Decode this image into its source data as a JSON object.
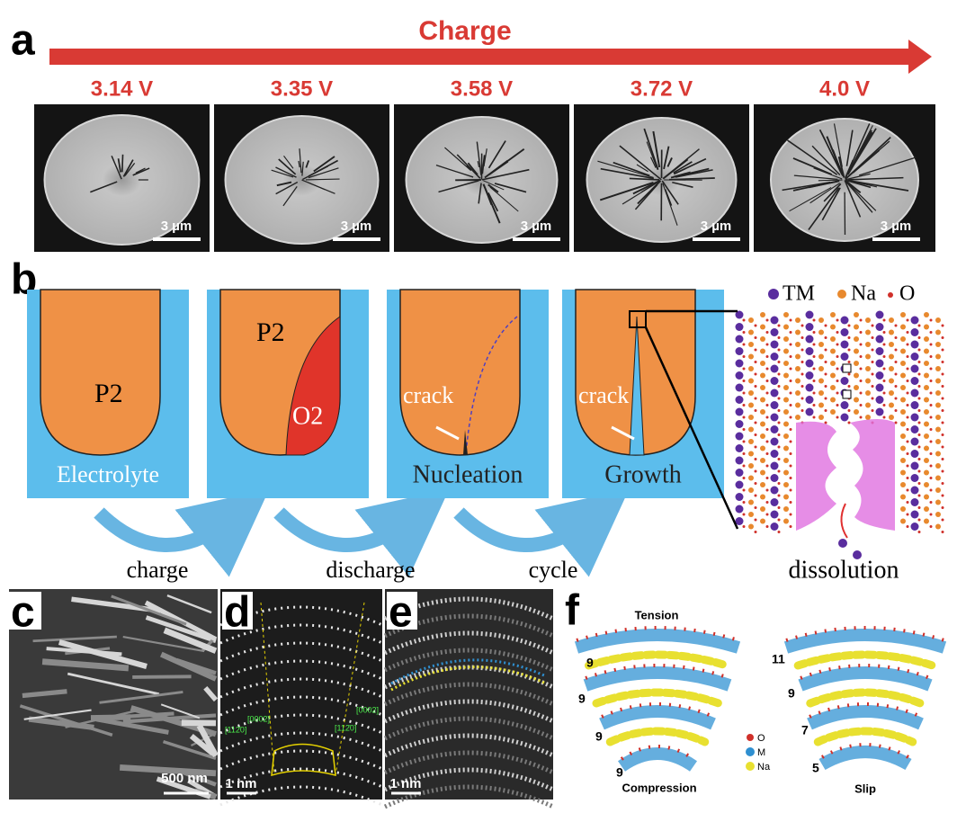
{
  "panel_a": {
    "label": "a",
    "arrow_label": "Charge",
    "images": [
      {
        "voltage": "3.14 V",
        "scale_bar": "3 µm"
      },
      {
        "voltage": "3.35 V",
        "scale_bar": "3 µm"
      },
      {
        "voltage": "3.58 V",
        "scale_bar": "3 µm"
      },
      {
        "voltage": "3.72 V",
        "scale_bar": "3 µm"
      },
      {
        "voltage": "4.0 V",
        "scale_bar": "3 µm"
      }
    ]
  },
  "panel_b": {
    "label": "b",
    "legend": [
      "TM",
      "Na",
      "O"
    ],
    "cells": [
      {
        "phase": "P2",
        "bottom": "Electrolyte"
      },
      {
        "phase": "P2",
        "second_phase": "O2"
      },
      {
        "crack": "crack",
        "bottom": "Nucleation"
      },
      {
        "crack": "crack",
        "bottom": "Growth"
      }
    ],
    "transitions": [
      "charge",
      "discharge",
      "cycle"
    ],
    "dissolution": "dissolution"
  },
  "panel_c": {
    "label": "c",
    "scale_bar": "500 nm"
  },
  "panel_d": {
    "label": "d",
    "direction_left": [
      "[0002]",
      "[112̄0]"
    ],
    "direction_right": [
      "[112̄0]",
      "[0002]"
    ],
    "scale_bar": "1 nm"
  },
  "panel_e": {
    "label": "e",
    "scale_bar": "1 nm"
  },
  "panel_f": {
    "label": "f",
    "top": "Tension",
    "bottom": "Compression",
    "slip": "Slip",
    "left_counts": [
      "9",
      "9",
      "9",
      "9"
    ],
    "right_counts": [
      "11",
      "9",
      "7",
      "5"
    ],
    "legend": [
      "O",
      "M",
      "Na"
    ]
  }
}
